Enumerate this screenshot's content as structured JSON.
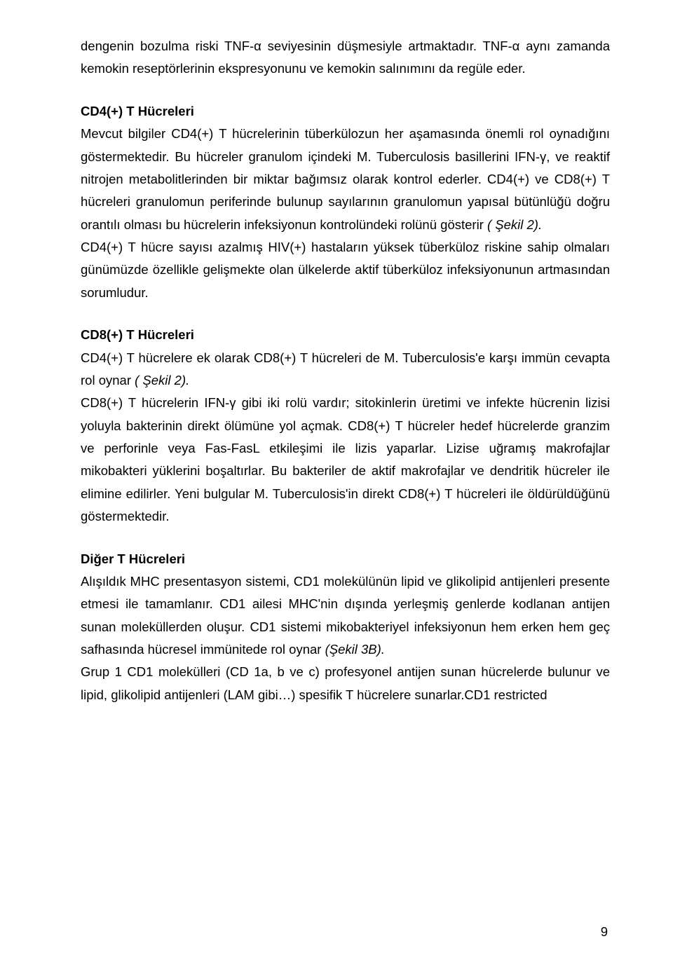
{
  "p1": "dengenin bozulma riski TNF-α seviyesinin düşmesiyle artmaktadır. TNF-α aynı zamanda kemokin reseptörlerinin ekspresyonunu ve kemokin salınımını da regüle eder.",
  "h1": "CD4(+) T Hücreleri",
  "p2a": "Mevcut bilgiler CD4(+) T hücrelerinin tüberkülozun her aşamasında önemli rol oynadığını göstermektedir. Bu hücreler granulom içindeki M. Tuberculosis basillerini IFN-γ, ve reaktif nitrojen metabolitlerinden bir miktar bağımsız olarak kontrol ederler. CD4(+) ve CD8(+) T hücreleri granulomun periferinde bulunup sayılarının granulomun yapısal bütünlüğü doğru orantılı olması bu hücrelerin infeksiyonun kontrolündeki rolünü gösterir ",
  "p2b": "( Şekil 2).",
  "p3": "CD4(+) T hücre sayısı azalmış HIV(+) hastaların yüksek tüberküloz riskine sahip olmaları günümüzde özellikle gelişmekte olan ülkelerde aktif tüberküloz infeksiyonunun artmasından sorumludur.",
  "h2": "CD8(+) T Hücreleri",
  "p4a": "CD4(+) T hücrelere ek olarak CD8(+) T hücreleri de M. Tuberculosis'e karşı immün cevapta rol oynar ",
  "p4b": "( Şekil 2).",
  "p5": "CD8(+) T hücrelerin IFN-γ gibi iki rolü vardır; sitokinlerin üretimi ve infekte hücrenin lizisi yoluyla bakterinin direkt ölümüne yol açmak. CD8(+) T hücreler hedef hücrelerde granzim ve perforinle veya Fas-FasL etkileşimi ile lizis yaparlar. Lizise uğramış makrofajlar mikobakteri yüklerini boşaltırlar. Bu bakteriler de aktif makrofajlar ve dendritik hücreler ile elimine edilirler. Yeni bulgular M. Tuberculosis'in direkt CD8(+) T hücreleri ile öldürüldüğünü göstermektedir.",
  "h3": "Diğer T Hücreleri",
  "p6a": "Alışıldık MHC presentasyon sistemi, CD1 molekülünün lipid ve glikolipid antijenleri presente etmesi ile tamamlanır. CD1 ailesi MHC'nin dışında yerleşmiş genlerde kodlanan antijen sunan moleküllerden oluşur. CD1 sistemi mikobakteriyel infeksiyonun hem erken hem geç safhasında hücresel immünitede rol oynar ",
  "p6b": "(Şekil 3B).",
  "p7": "Grup 1 CD1 molekülleri (CD 1a, b ve c) profesyonel antijen sunan hücrelerde bulunur ve lipid, glikolipid antijenleri (LAM gibi…) spesifik T hücrelere sunarlar.CD1 restricted",
  "page_number": "9"
}
